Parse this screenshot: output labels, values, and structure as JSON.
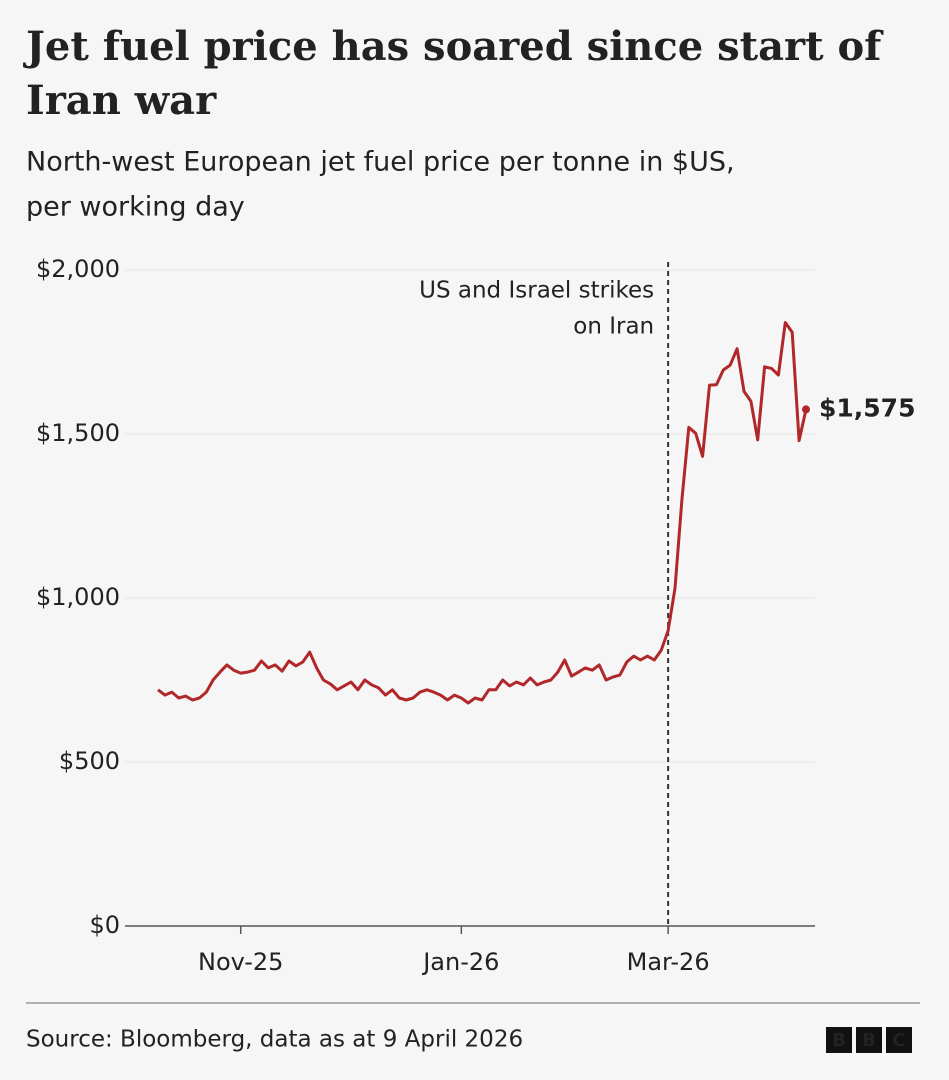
{
  "chart_data": {
    "type": "line",
    "title": [
      "Jet fuel price has soared since start of",
      "Iran war"
    ],
    "subtitle": [
      "North-west European jet fuel price per tonne in $US,",
      "per working day"
    ],
    "annotation": [
      "US and Israel strikes",
      "on Iran"
    ],
    "source": "Source: Bloomberg, data as at 9 April 2026",
    "logo": [
      "B",
      "B",
      "C"
    ],
    "categories": [
      null,
      null,
      null,
      null,
      null,
      null,
      null,
      null,
      null,
      null,
      null,
      null,
      "Nov-25",
      null,
      null,
      null,
      null,
      null,
      null,
      null,
      null,
      null,
      null,
      null,
      null,
      null,
      null,
      null,
      null,
      null,
      null,
      null,
      null,
      null,
      null,
      null,
      null,
      null,
      null,
      null,
      null,
      null,
      null,
      null,
      "Jan-26",
      null,
      null,
      null,
      null,
      null,
      null,
      null,
      null,
      null,
      null,
      null,
      null,
      null,
      null,
      null,
      null,
      null,
      null,
      null,
      null,
      null,
      null,
      null,
      null,
      null,
      null,
      null,
      null,
      null,
      "Mar-26",
      null,
      null,
      null,
      null,
      null,
      null,
      null,
      null,
      null,
      null,
      null,
      null,
      null,
      null,
      null,
      null,
      null,
      null,
      null,
      null
    ],
    "series": [
      {
        "color": "#b0282a",
        "values": [
          720,
          704,
          713,
          695,
          701,
          689,
          695,
          713,
          750,
          774,
          796,
          780,
          771,
          774,
          780,
          808,
          787,
          796,
          777,
          808,
          793,
          805,
          835,
          787,
          750,
          738,
          720,
          732,
          744,
          720,
          750,
          735,
          726,
          704,
          720,
          695,
          689,
          695,
          713,
          720,
          713,
          704,
          689,
          704,
          695,
          680,
          695,
          689,
          720,
          720,
          750,
          732,
          744,
          735,
          756,
          735,
          744,
          750,
          774,
          811,
          762,
          774,
          787,
          780,
          796,
          750,
          759,
          765,
          805,
          823,
          811,
          823,
          811,
          841,
          900,
          1030,
          1299,
          1520,
          1502,
          1432,
          1649,
          1650,
          1695,
          1710,
          1760,
          1630,
          1600,
          1482,
          1705,
          1700,
          1680,
          1840,
          1810,
          1480,
          1575
        ],
        "value_labels": [
          null,
          null,
          null,
          null,
          null,
          null,
          null,
          null,
          null,
          null,
          null,
          null,
          null,
          null,
          null,
          null,
          null,
          null,
          null,
          null,
          null,
          null,
          null,
          null,
          null,
          null,
          null,
          null,
          null,
          null,
          null,
          null,
          null,
          null,
          null,
          null,
          null,
          null,
          null,
          null,
          null,
          null,
          null,
          null,
          null,
          null,
          null,
          null,
          null,
          null,
          null,
          null,
          null,
          null,
          null,
          null,
          null,
          null,
          null,
          null,
          null,
          null,
          null,
          null,
          null,
          null,
          null,
          null,
          null,
          null,
          null,
          null,
          null,
          null,
          null,
          null,
          null,
          null,
          null,
          null,
          null,
          null,
          null,
          null,
          null,
          null,
          null,
          null,
          null,
          null,
          null,
          null,
          null,
          null,
          "$1,575"
        ]
      }
    ],
    "ylim": [
      0,
      2000
    ],
    "yticks": [
      {
        "value": 0,
        "label": "$0"
      },
      {
        "value": 500,
        "label": "$500"
      },
      {
        "value": 1000,
        "label": "$1,000"
      },
      {
        "value": 1500,
        "label": "$1,500"
      },
      {
        "value": 2000,
        "label": "$2,000"
      }
    ],
    "grid": true
  }
}
